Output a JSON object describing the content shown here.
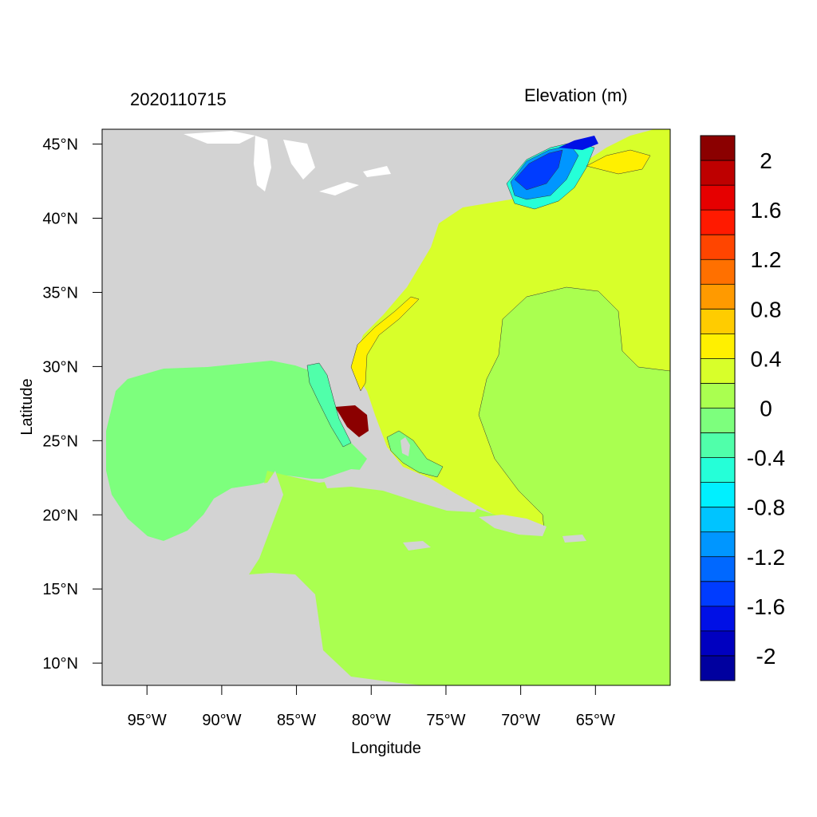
{
  "header": {
    "time_label": "2020110715",
    "variable_label": "Elevation (m)"
  },
  "chart_data": {
    "type": "map-contour",
    "xlabel": "Longitude",
    "ylabel": "Latitude",
    "xlim": [
      -98,
      -60
    ],
    "ylim": [
      8.5,
      46
    ],
    "x_ticks": [
      {
        "value": -95,
        "label": "95°W"
      },
      {
        "value": -90,
        "label": "90°W"
      },
      {
        "value": -85,
        "label": "85°W"
      },
      {
        "value": -80,
        "label": "80°W"
      },
      {
        "value": -75,
        "label": "75°W"
      },
      {
        "value": -70,
        "label": "70°W"
      },
      {
        "value": -65,
        "label": "65°W"
      }
    ],
    "y_ticks": [
      {
        "value": 45,
        "label": "45°N"
      },
      {
        "value": 40,
        "label": "40°N"
      },
      {
        "value": 35,
        "label": "35°N"
      },
      {
        "value": 30,
        "label": "30°N"
      },
      {
        "value": 25,
        "label": "25°N"
      },
      {
        "value": 20,
        "label": "20°N"
      },
      {
        "value": 15,
        "label": "15°N"
      },
      {
        "value": 10,
        "label": "10°N"
      }
    ],
    "colorbar": {
      "colors": [
        "#8b0000",
        "#be0000",
        "#e60000",
        "#ff1a00",
        "#ff4500",
        "#ff7000",
        "#ff9a00",
        "#ffcc00",
        "#fff000",
        "#d8ff2a",
        "#aaff50",
        "#7dff7d",
        "#50ffaa",
        "#25ffd8",
        "#00f0ff",
        "#00c4ff",
        "#0096ff",
        "#0068ff",
        "#003cff",
        "#0010e6",
        "#0000c0",
        "#00009f"
      ],
      "labels": [
        "2",
        "1.6",
        "1.2",
        "0.8",
        "0.4",
        "0",
        "-0.4",
        "-0.8",
        "-1.2",
        "-1.6",
        "-2"
      ]
    },
    "colors": {
      "land": "#d3d3d3",
      "gulf": "#7dff7d",
      "caribbean": "#aaff50",
      "atlantic": "#d8ff2a",
      "atlantic_central": "#aaff50"
    }
  }
}
